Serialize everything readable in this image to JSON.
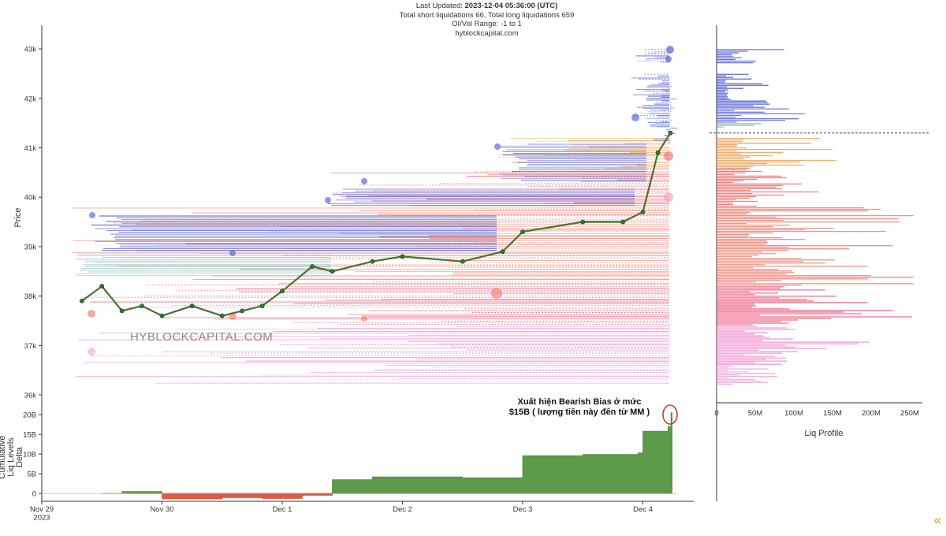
{
  "header": {
    "updated_label": "Last Updated:",
    "updated_value": "2023-12-04 05:36:00 (UTC)",
    "liq_totals": "Total short liquidations 66, Total long liquidations 659",
    "oi_range": "OI/Vol Range: -1 to 1",
    "site": "hyblockcapital.com"
  },
  "watermark": "HYBLOCKCAPITAL.COM",
  "annotation": {
    "line1": "Xuất hiện Bearish Bias ở mức",
    "line2": "$15B ( lượng tiền này đến từ MM )"
  },
  "chart_data": [
    {
      "type": "line",
      "name": "price",
      "ylabel": "Price",
      "ylim": [
        36000,
        43600
      ],
      "y_ticks": [
        "36k",
        "37k",
        "38k",
        "39k",
        "40k",
        "41k",
        "42k",
        "43k"
      ],
      "x_ticks": [
        "Nov 29\n2023",
        "Nov 30",
        "Dec 1",
        "Dec 2",
        "Dec 3",
        "Dec 4"
      ],
      "x": [
        "Nov 29 08:00",
        "Nov 29 12:00",
        "Nov 29 16:00",
        "Nov 29 20:00",
        "Nov 30 00:00",
        "Nov 30 06:00",
        "Nov 30 12:00",
        "Nov 30 16:00",
        "Nov 30 20:00",
        "Dec 1 00:00",
        "Dec 1 06:00",
        "Dec 1 10:00",
        "Dec 1 18:00",
        "Dec 2 00:00",
        "Dec 2 12:00",
        "Dec 2 20:00",
        "Dec 3 00:00",
        "Dec 3 12:00",
        "Dec 3 20:00",
        "Dec 4 00:00",
        "Dec 4 03:00",
        "Dec 4 05:30"
      ],
      "y": [
        37900,
        38200,
        37700,
        37800,
        37600,
        37800,
        37600,
        37700,
        37800,
        38100,
        38600,
        38500,
        38700,
        38800,
        38700,
        38900,
        39300,
        39500,
        39500,
        39700,
        40900,
        41300
      ],
      "legend_reading": "none"
    },
    {
      "type": "area",
      "name": "cumulative-liq-delta",
      "ylabel": "Cumulative Liq Levels Delta",
      "y_ticks": [
        "0",
        "5B",
        "10B",
        "15B",
        "20B"
      ],
      "ylim": [
        -2000000000,
        22000000000
      ],
      "x": [
        "Nov 29 12:00",
        "Nov 29 16:00",
        "Nov 30 00:00",
        "Nov 30 12:00",
        "Nov 30 20:00",
        "Dec 1 04:00",
        "Dec 1 10:00",
        "Dec 1 18:00",
        "Dec 2 12:00",
        "Dec 3 00:00",
        "Dec 3 12:00",
        "Dec 3 23:00",
        "Dec 4 00:00",
        "Dec 4 05:00",
        "Dec 4 05:36"
      ],
      "values": [
        0,
        500000000,
        -1400000000,
        -1100000000,
        -1300000000,
        -500000000,
        3500000000,
        4200000000,
        4000000000,
        9600000000,
        9900000000,
        10300000000,
        15800000000,
        17000000000,
        20500000000
      ],
      "colors": {
        "positive": "#5b9a48",
        "negative": "#e05a45"
      }
    },
    {
      "type": "bar",
      "name": "liq-profile",
      "xlabel": "Liq Profile",
      "x_ticks": [
        "0",
        "50M",
        "100M",
        "150M",
        "200M",
        "250M"
      ],
      "xlim": [
        0,
        260000000
      ],
      "orientation": "horizontal",
      "current_price": 41300,
      "bands": [
        {
          "price_from": 42700,
          "price_to": 43000,
          "value": 90000000,
          "color": "#4f5bd5"
        },
        {
          "price_from": 41800,
          "price_to": 42500,
          "value": 70000000,
          "color": "#3f4fd0"
        },
        {
          "price_from": 41500,
          "price_to": 41800,
          "value": 150000000,
          "color": "#5966d8"
        },
        {
          "price_from": 41400,
          "price_to": 41500,
          "value": 60000000,
          "color": "#88b8b0"
        },
        {
          "price_from": 40600,
          "price_to": 41200,
          "value": 170000000,
          "color": "#f0a050"
        },
        {
          "price_from": 39800,
          "price_to": 40600,
          "value": 140000000,
          "color": "#f06a6a"
        },
        {
          "price_from": 38200,
          "price_to": 39800,
          "value": 260000000,
          "color": "#f08070"
        },
        {
          "price_from": 37400,
          "price_to": 38200,
          "value": 260000000,
          "color": "#ea5a78"
        },
        {
          "price_from": 36600,
          "price_to": 37400,
          "value": 200000000,
          "color": "#f28ad0"
        },
        {
          "price_from": 36200,
          "price_to": 36600,
          "value": 80000000,
          "color": "#f2a6e0"
        }
      ]
    }
  ]
}
